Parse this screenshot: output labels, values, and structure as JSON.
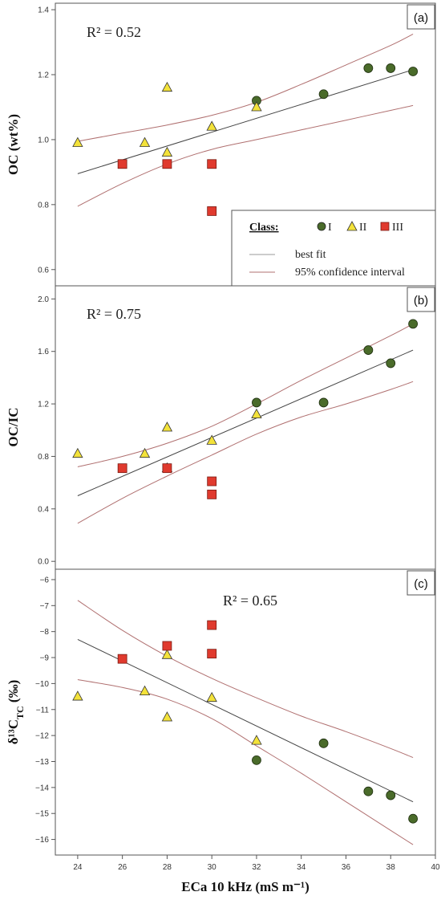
{
  "figure": {
    "xlabel": "ECa 10 kHz (mS m⁻¹)",
    "xlim": [
      23,
      40
    ],
    "xticks": [
      24,
      26,
      28,
      30,
      32,
      34,
      36,
      38,
      40
    ],
    "colors": {
      "class_I": "#4a6b2a",
      "class_II": "#f3e23a",
      "class_III": "#e03a2e",
      "best_fit": "#444444",
      "confidence": "#b07070"
    },
    "legend": {
      "title": "Class:",
      "class_I": "I",
      "class_II": "II",
      "class_III": "III",
      "best_fit": "best fit",
      "confidence": "95% confidence interval",
      "placement": "bottom-right of panel (a)"
    }
  },
  "chart_data": [
    {
      "type": "scatter",
      "panel_label": "(a)",
      "r2_label": "R² = 0.52",
      "ylabel": "OC (wt%)",
      "ylim": [
        0.55,
        1.42
      ],
      "yticks": [
        0.6,
        0.8,
        1.0,
        1.2,
        1.4
      ],
      "ytick_labels": [
        "0.6",
        "0.8",
        "1.0",
        "1.2",
        "1.4"
      ],
      "series": [
        {
          "name": "I",
          "marker": "circle",
          "points": [
            [
              32,
              1.12
            ],
            [
              35,
              1.14
            ],
            [
              37,
              1.22
            ],
            [
              38,
              1.22
            ],
            [
              39,
              1.21
            ]
          ]
        },
        {
          "name": "II",
          "marker": "triangle",
          "points": [
            [
              24,
              0.99
            ],
            [
              27,
              0.99
            ],
            [
              28,
              1.16
            ],
            [
              28,
              0.96
            ],
            [
              30,
              1.04
            ],
            [
              32,
              1.1
            ]
          ]
        },
        {
          "name": "III",
          "marker": "square",
          "points": [
            [
              26,
              0.925
            ],
            [
              28,
              0.925
            ],
            [
              30,
              0.925
            ],
            [
              30,
              0.78
            ]
          ]
        }
      ],
      "fit": [
        [
          24,
          0.895
        ],
        [
          39,
          1.215
        ]
      ],
      "ci_upper": [
        [
          24,
          0.995
        ],
        [
          26,
          1.02
        ],
        [
          28,
          1.045
        ],
        [
          30,
          1.075
        ],
        [
          32,
          1.115
        ],
        [
          34,
          1.17
        ],
        [
          36,
          1.23
        ],
        [
          38,
          1.29
        ],
        [
          39,
          1.325
        ]
      ],
      "ci_lower": [
        [
          24,
          0.795
        ],
        [
          26,
          0.865
        ],
        [
          28,
          0.925
        ],
        [
          30,
          0.97
        ],
        [
          32,
          1.0
        ],
        [
          34,
          1.03
        ],
        [
          36,
          1.06
        ],
        [
          38,
          1.09
        ],
        [
          39,
          1.105
        ]
      ]
    },
    {
      "type": "scatter",
      "panel_label": "(b)",
      "r2_label": "R² = 0.75",
      "ylabel": "OC/IC",
      "ylim": [
        -0.06,
        2.1
      ],
      "yticks": [
        0.0,
        0.4,
        0.8,
        1.2,
        1.6,
        2.0
      ],
      "ytick_labels": [
        "0.0",
        "0.4",
        "0.8",
        "1.2",
        "1.6",
        "2.0"
      ],
      "series": [
        {
          "name": "I",
          "marker": "circle",
          "points": [
            [
              32,
              1.21
            ],
            [
              35,
              1.21
            ],
            [
              37,
              1.61
            ],
            [
              38,
              1.51
            ],
            [
              39,
              1.81
            ]
          ]
        },
        {
          "name": "II",
          "marker": "triangle",
          "points": [
            [
              24,
              0.82
            ],
            [
              27,
              0.82
            ],
            [
              28,
              1.02
            ],
            [
              28,
              0.71
            ],
            [
              30,
              0.92
            ],
            [
              32,
              1.12
            ]
          ]
        },
        {
          "name": "III",
          "marker": "square",
          "points": [
            [
              26,
              0.71
            ],
            [
              28,
              0.71
            ],
            [
              30,
              0.61
            ],
            [
              30,
              0.51
            ]
          ]
        }
      ],
      "fit": [
        [
          24,
          0.5
        ],
        [
          39,
          1.61
        ]
      ],
      "ci_upper": [
        [
          24,
          0.72
        ],
        [
          26,
          0.8
        ],
        [
          28,
          0.9
        ],
        [
          30,
          1.03
        ],
        [
          32,
          1.2
        ],
        [
          34,
          1.38
        ],
        [
          36,
          1.55
        ],
        [
          38,
          1.72
        ],
        [
          39,
          1.81
        ]
      ],
      "ci_lower": [
        [
          24,
          0.29
        ],
        [
          26,
          0.48
        ],
        [
          28,
          0.65
        ],
        [
          30,
          0.81
        ],
        [
          32,
          0.97
        ],
        [
          34,
          1.1
        ],
        [
          36,
          1.2
        ],
        [
          38,
          1.31
        ],
        [
          39,
          1.37
        ]
      ]
    },
    {
      "type": "scatter",
      "panel_label": "(c)",
      "r2_label": "R² = 0.65",
      "ylabel": "δ¹³C",
      "ylabel_sub": "TC",
      "ylabel_unit": " (‰)",
      "ylim": [
        -16.6,
        -5.6
      ],
      "yticks": [
        -6,
        -7,
        -8,
        -9,
        -10,
        -11,
        -12,
        -13,
        -14,
        -15,
        -16
      ],
      "ytick_labels": [
        "−6",
        "−7",
        "−8",
        "−9",
        "−10",
        "−11",
        "−12",
        "−13",
        "−14",
        "−15",
        "−16"
      ],
      "series": [
        {
          "name": "I",
          "marker": "circle",
          "points": [
            [
              32,
              -12.95
            ],
            [
              35,
              -12.3
            ],
            [
              37,
              -14.15
            ],
            [
              38,
              -14.3
            ],
            [
              39,
              -15.2
            ]
          ]
        },
        {
          "name": "II",
          "marker": "triangle",
          "points": [
            [
              24,
              -10.5
            ],
            [
              27,
              -10.3
            ],
            [
              28,
              -8.9
            ],
            [
              28,
              -11.3
            ],
            [
              30,
              -10.55
            ],
            [
              32,
              -12.2
            ]
          ]
        },
        {
          "name": "III",
          "marker": "square",
          "points": [
            [
              26,
              -9.05
            ],
            [
              28,
              -8.55
            ],
            [
              30,
              -7.75
            ],
            [
              30,
              -8.85
            ]
          ]
        }
      ],
      "fit": [
        [
          24,
          -8.3
        ],
        [
          39,
          -14.55
        ]
      ],
      "ci_upper": [
        [
          24,
          -6.8
        ],
        [
          26,
          -7.95
        ],
        [
          28,
          -8.95
        ],
        [
          30,
          -9.8
        ],
        [
          32,
          -10.55
        ],
        [
          34,
          -11.25
        ],
        [
          36,
          -11.85
        ],
        [
          38,
          -12.5
        ],
        [
          39,
          -12.85
        ]
      ],
      "ci_lower": [
        [
          24,
          -9.85
        ],
        [
          26,
          -10.15
        ],
        [
          28,
          -10.6
        ],
        [
          30,
          -11.35
        ],
        [
          32,
          -12.4
        ],
        [
          34,
          -13.45
        ],
        [
          36,
          -14.55
        ],
        [
          38,
          -15.65
        ],
        [
          39,
          -16.2
        ]
      ]
    }
  ]
}
